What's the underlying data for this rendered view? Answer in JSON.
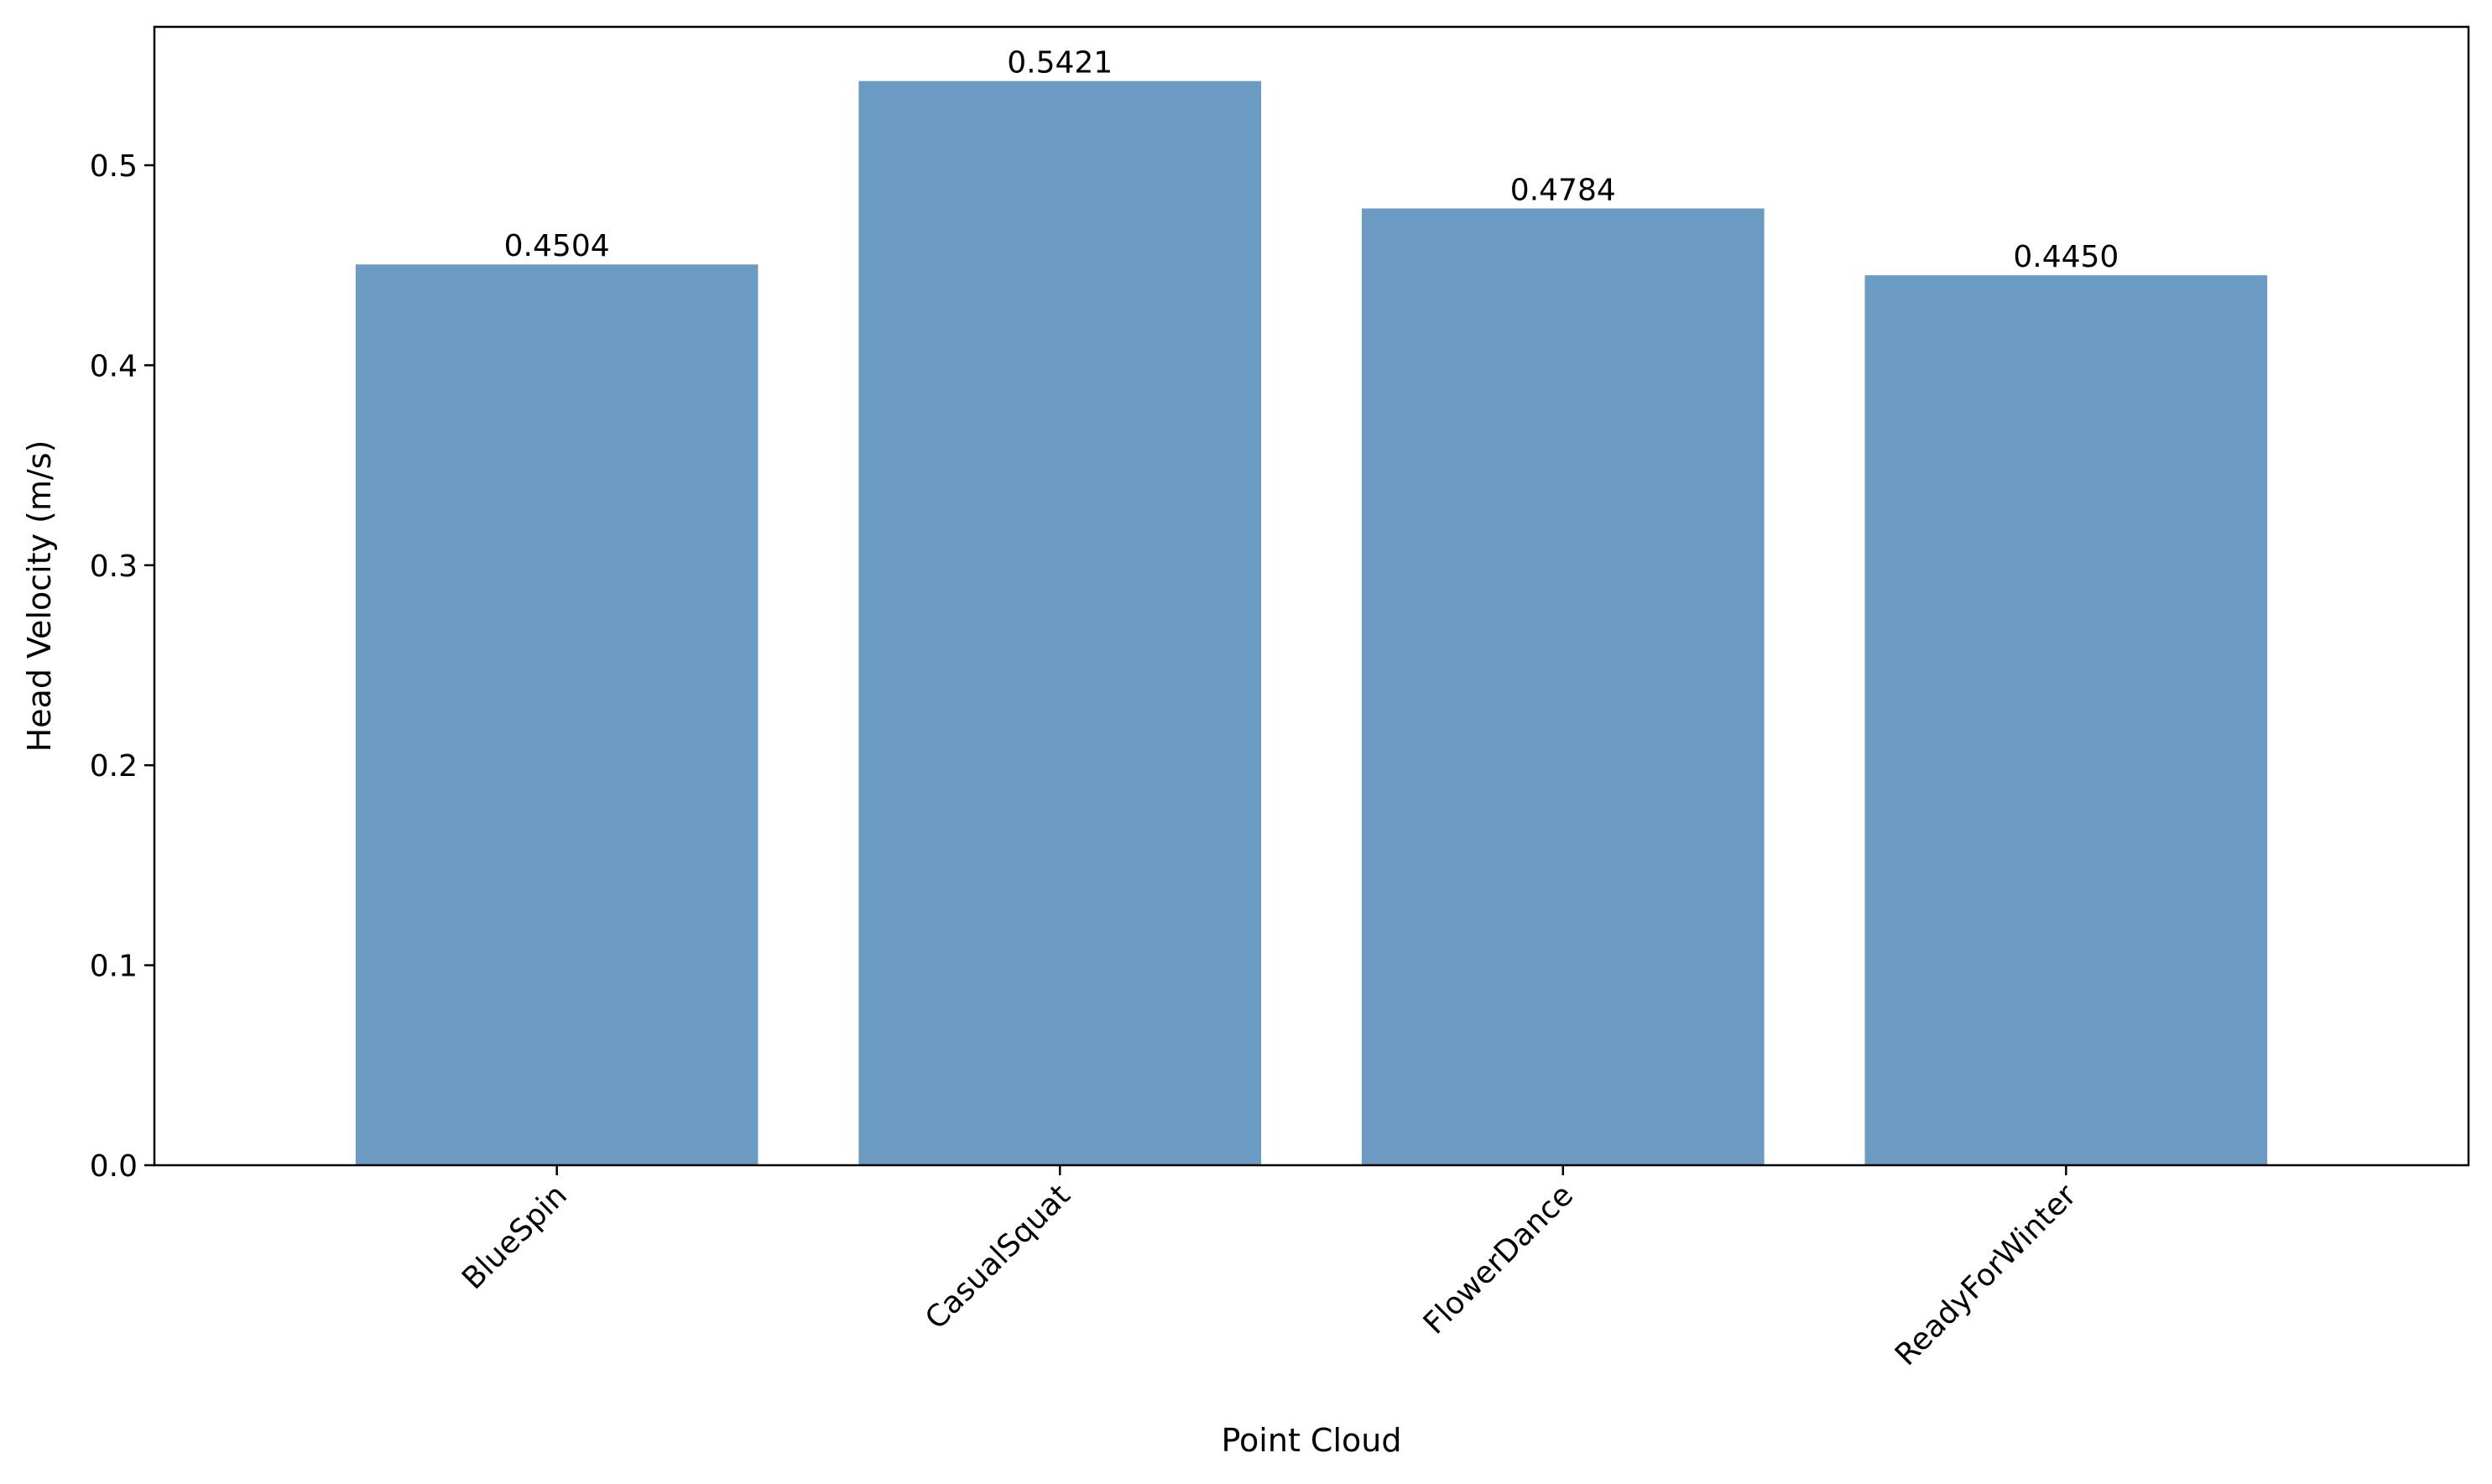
{
  "chart_data": {
    "type": "bar",
    "title": "",
    "xlabel": "Point Cloud",
    "ylabel": "Head Velocity (m/s)",
    "categories": [
      "BlueSpin",
      "CasualSquat",
      "FlowerDance",
      "ReadyForWinter"
    ],
    "values": [
      0.4504,
      0.5421,
      0.4784,
      0.445
    ],
    "value_labels": [
      "0.4504",
      "0.5421",
      "0.4784",
      "0.4450"
    ],
    "yticks": [
      0.0,
      0.1,
      0.2,
      0.3,
      0.4,
      0.5
    ],
    "ytick_labels": [
      "0.0",
      "0.1",
      "0.2",
      "0.3",
      "0.4",
      "0.5"
    ],
    "ylim": [
      0,
      0.5692
    ],
    "grid": false,
    "xtick_rotation_deg": 45,
    "bar_color": "#6b9bc3",
    "axis_color": "#000000"
  }
}
